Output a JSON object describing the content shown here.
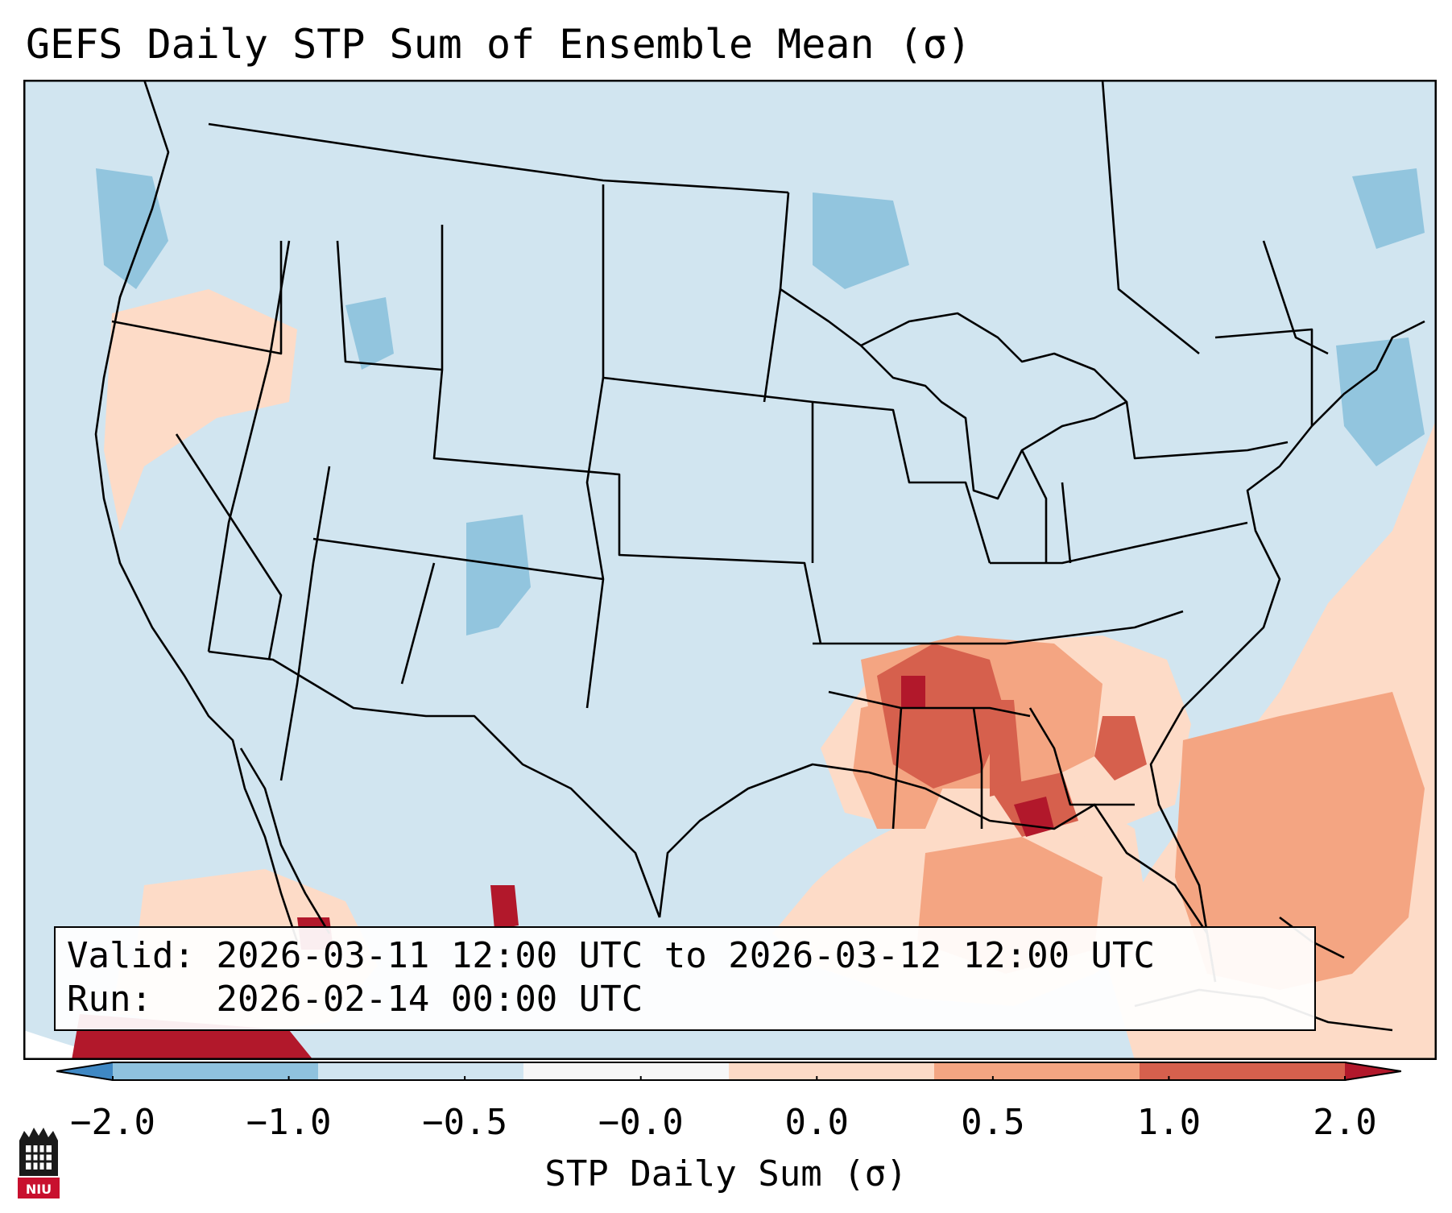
{
  "title": "GEFS Daily STP Sum of Ensemble Mean (σ)",
  "valid_label": "Valid:",
  "valid_text": "2026-03-11 12:00 UTC to 2026-03-12 12:00 UTC",
  "run_label": "Run:",
  "run_text": "2026-02-14 00:00 UTC",
  "colorbar": {
    "label": "STP Daily Sum (σ)",
    "ticks": [
      "−2.0",
      "−1.0",
      "−0.5",
      "−0.0",
      "0.0",
      "0.5",
      "1.0",
      "2.0"
    ],
    "colors": [
      "#3f88c4",
      "#8fc2de",
      "#d1e5f0",
      "#f7f7f7",
      "#fddbc7",
      "#f4a582",
      "#d6604d",
      "#b2182b"
    ]
  },
  "map_colors": {
    "background": "#d1e5f0",
    "light_blue": "#92c5de",
    "light_red": "#fddbc7",
    "medium_red": "#f4a582",
    "red": "#d6604d",
    "dark_red": "#b2182b",
    "outside": "#ffffff"
  },
  "logo_text": "NIU"
}
